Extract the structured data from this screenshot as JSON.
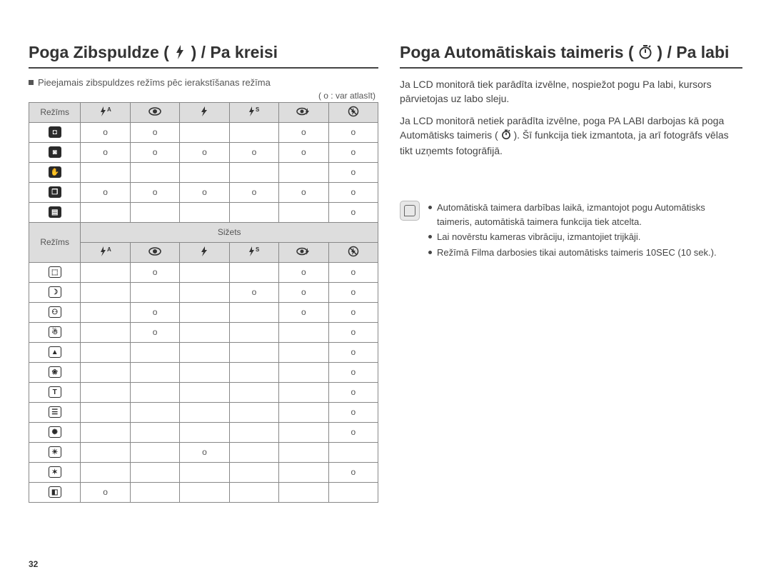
{
  "page_number": "32",
  "left": {
    "title_prefix": "Poga Zibspuldze (",
    "title_suffix": ") / Pa kreisi",
    "subnote": "Pieejamais zibspuldzes režīms pēc ierakstīšanas režīma",
    "legend": "( o : var atlasīt)",
    "mode_label": "Režīms",
    "sizets_label": "Sižets",
    "header_icons": [
      "flash-auto",
      "eye",
      "flash",
      "flash-s",
      "eye-slash",
      "no-flash"
    ],
    "upper_rows": [
      {
        "icon": "camera",
        "marks": [
          "o",
          "o",
          "",
          "",
          "o",
          "o"
        ]
      },
      {
        "icon": "camera-hand",
        "marks": [
          "o",
          "o",
          "o",
          "o",
          "o",
          "o"
        ]
      },
      {
        "icon": "hand",
        "marks": [
          "",
          "",
          "",
          "",
          "",
          "o"
        ]
      },
      {
        "icon": "scene",
        "marks": [
          "o",
          "o",
          "o",
          "o",
          "o",
          "o"
        ]
      },
      {
        "icon": "film",
        "marks": [
          "",
          "",
          "",
          "",
          "",
          "o"
        ]
      }
    ],
    "lower_rows": [
      {
        "icon": "portrait",
        "marks": [
          "",
          "o",
          "",
          "",
          "o",
          "o"
        ]
      },
      {
        "icon": "night",
        "marks": [
          "",
          "",
          "",
          "o",
          "o",
          "o"
        ]
      },
      {
        "icon": "children",
        "marks": [
          "",
          "o",
          "",
          "",
          "o",
          "o"
        ]
      },
      {
        "icon": "landscape2",
        "marks": [
          "",
          "o",
          "",
          "",
          "",
          "o"
        ]
      },
      {
        "icon": "mountain",
        "marks": [
          "",
          "",
          "",
          "",
          "",
          "o"
        ]
      },
      {
        "icon": "closeup",
        "marks": [
          "",
          "",
          "",
          "",
          "",
          "o"
        ]
      },
      {
        "icon": "text",
        "marks": [
          "",
          "",
          "",
          "",
          "",
          "o"
        ]
      },
      {
        "icon": "sunset",
        "marks": [
          "",
          "",
          "",
          "",
          "",
          "o"
        ]
      },
      {
        "icon": "dawn",
        "marks": [
          "",
          "",
          "",
          "",
          "",
          "o"
        ]
      },
      {
        "icon": "backlight",
        "marks": [
          "",
          "",
          "o",
          "",
          "",
          ""
        ]
      },
      {
        "icon": "fireworks",
        "marks": [
          "",
          "",
          "",
          "",
          "",
          "o"
        ]
      },
      {
        "icon": "beach",
        "marks": [
          "o",
          "",
          "",
          "",
          "",
          ""
        ]
      }
    ]
  },
  "right": {
    "title_prefix": "Poga Automātiskais taimeris (",
    "title_suffix": ") / Pa labi",
    "para1": "Ja LCD monitorā tiek parādīta izvēlne, nospiežot pogu Pa labi, kursors pārvietojas uz labo sleju.",
    "para2a": "Ja LCD monitorā netiek parādīta izvēlne, poga PA LABI darbojas kā poga Automātisks taimeris (",
    "para2b": "). Šī funkcija tiek izmantota, ja arī fotogrāfs vēlas tikt uzņemts fotogrāfijā.",
    "notes": [
      "Automātiskā taimera darbības laikā, izmantojot pogu Automātisks taimeris, automātiskā taimera funkcija tiek atcelta.",
      "Lai novērstu kameras vibrāciju, izmantojiet trijkāji.",
      "Režīmā Filma darbosies tikai automātisks taimeris 10SEC (10 sek.)."
    ]
  },
  "colors": {
    "header_bg": "#dddddd",
    "border": "#888888",
    "text": "#444444"
  }
}
